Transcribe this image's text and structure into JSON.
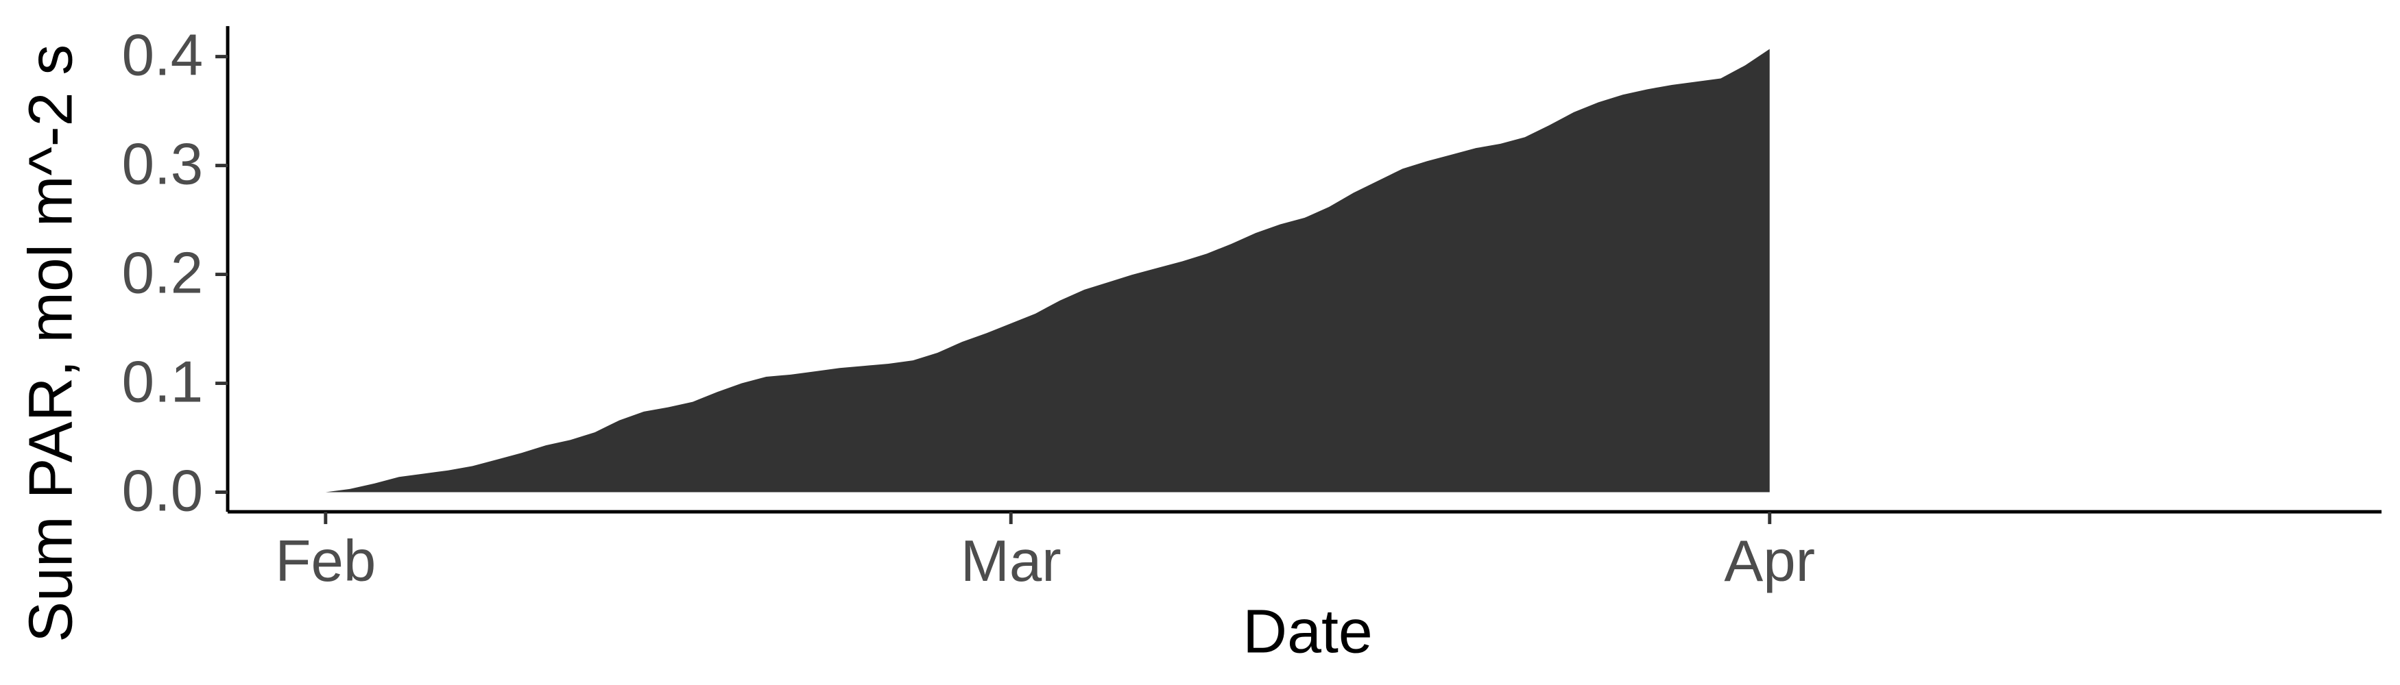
{
  "chart_data": {
    "type": "area",
    "x_label": "Date",
    "y_label": "Sum PAR, mol m^-2 s",
    "color": "#333333",
    "x": [
      0,
      1,
      2,
      3,
      4,
      5,
      6,
      7,
      8,
      9,
      10,
      11,
      12,
      13,
      14,
      15,
      16,
      17,
      18,
      19,
      20,
      21,
      22,
      23,
      24,
      25,
      26,
      27,
      28,
      29,
      30,
      31,
      32,
      33,
      34,
      35,
      36,
      37,
      38,
      39,
      40,
      41,
      42,
      43,
      44,
      45,
      46,
      47,
      48,
      49,
      50,
      51,
      52,
      53,
      54,
      55,
      56,
      57,
      58,
      59
    ],
    "values": [
      0.0,
      0.003,
      0.008,
      0.014,
      0.017,
      0.02,
      0.024,
      0.03,
      0.036,
      0.043,
      0.048,
      0.055,
      0.066,
      0.074,
      0.078,
      0.083,
      0.092,
      0.1,
      0.106,
      0.108,
      0.111,
      0.114,
      0.116,
      0.118,
      0.121,
      0.128,
      0.138,
      0.146,
      0.155,
      0.164,
      0.176,
      0.186,
      0.193,
      0.2,
      0.206,
      0.212,
      0.219,
      0.228,
      0.238,
      0.246,
      0.252,
      0.262,
      0.275,
      0.286,
      0.297,
      0.304,
      0.31,
      0.316,
      0.32,
      0.326,
      0.337,
      0.349,
      0.358,
      0.365,
      0.37,
      0.374,
      0.377,
      0.38,
      0.392,
      0.407
    ],
    "xlim": [
      -4,
      84
    ],
    "xticks": [
      {
        "value": 0,
        "label": "Feb"
      },
      {
        "value": 28,
        "label": "Mar"
      },
      {
        "value": 59,
        "label": "Apr"
      }
    ],
    "ylim": [
      -0.018,
      0.428
    ],
    "yticks": [
      {
        "value": 0,
        "label": "0.0"
      },
      {
        "value": 0.1,
        "label": "0.1"
      },
      {
        "value": 0.2,
        "label": "0.2"
      },
      {
        "value": 0.3,
        "label": "0.3"
      },
      {
        "value": 0.4,
        "label": "0.4"
      }
    ],
    "grid": false
  }
}
